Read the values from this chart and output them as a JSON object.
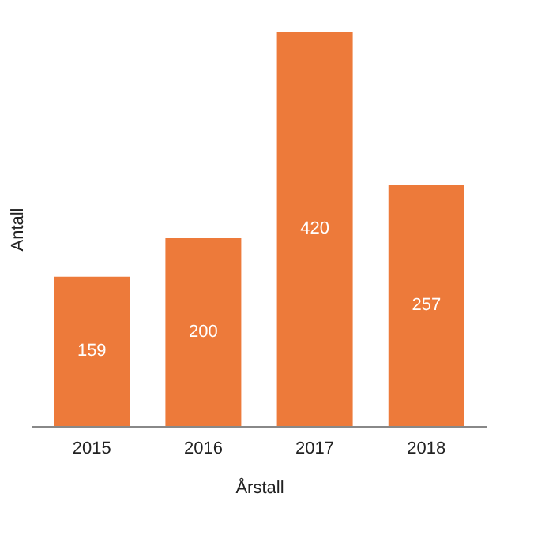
{
  "chart_data": {
    "type": "bar",
    "xlabel": "Årstall",
    "ylabel": "Antall",
    "categories": [
      "2015",
      "2016",
      "2017",
      "2018"
    ],
    "values": [
      159,
      200,
      420,
      257
    ],
    "color": "#ed7a3a",
    "data_labels": true,
    "tick_labels": "x",
    "grid": false
  }
}
